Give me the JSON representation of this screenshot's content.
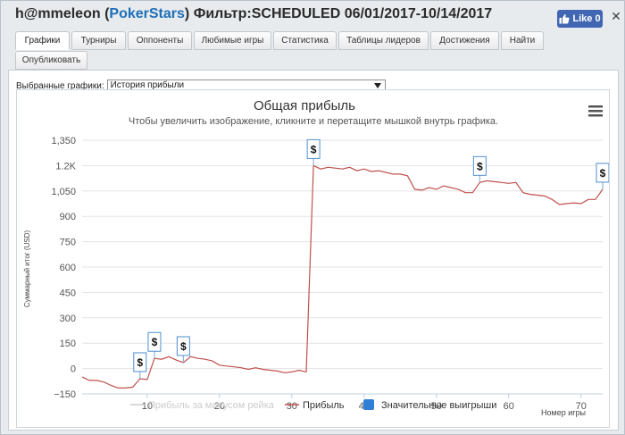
{
  "window": {
    "title_user": "h@mmeleon",
    "title_site": "PokerStars",
    "title_filter": "Фильтр:SCHEDULED 06/01/2017-10/14/2017",
    "title_paren_open": "(",
    "title_paren_close": ")",
    "like_label": "Like 0",
    "close_icon": "close-icon"
  },
  "tabs": [
    {
      "label": "Графики",
      "active": true
    },
    {
      "label": "Турниры"
    },
    {
      "label": "Оппоненты"
    },
    {
      "label": "Любимые игры"
    },
    {
      "label": "Статистика"
    },
    {
      "label": "Таблицы лидеров"
    },
    {
      "label": "Достижения"
    },
    {
      "label": "Найти"
    },
    {
      "label": "Опубликовать"
    }
  ],
  "graph_selector": {
    "label": "Выбранные графики:",
    "value": "История прибыли"
  },
  "chart_data": {
    "type": "line",
    "title": "Общая прибыль",
    "subtitle": "Чтобы увеличить изображение, кликните и перетащите мышкой внутрь графика.",
    "ylabel": "Суммарный итог (USD)",
    "xlabel": "Номер игры",
    "ylim": [
      -150,
      1350
    ],
    "xlim": [
      1,
      73
    ],
    "y_ticks": [
      -150,
      0,
      150,
      300,
      450,
      600,
      750,
      900,
      1050,
      1200,
      1350
    ],
    "y_tick_labels": [
      "−150",
      "0",
      "150",
      "300",
      "450",
      "600",
      "750",
      "900",
      "1,050",
      "1.2K",
      "1,350"
    ],
    "x_ticks": [
      10,
      20,
      30,
      40,
      50,
      60,
      70
    ],
    "x_tick_labels": [
      "10",
      "20",
      "30",
      "40",
      "50",
      "60",
      "70"
    ],
    "grid": "horizontal",
    "legend_position": "bottom",
    "legend": [
      {
        "name": "Прибыль за минусом рейка",
        "color": "#cccccc",
        "marker": "line",
        "hidden": true
      },
      {
        "name": "Прибыль",
        "color": "#c0504d",
        "marker": "line"
      },
      {
        "name": "Значительные выигрыши",
        "color": "#2f7ed8",
        "marker": "square"
      }
    ],
    "series": [
      {
        "name": "Прибыль",
        "color": "#c0504d",
        "x": [
          1,
          2,
          3,
          4,
          5,
          6,
          7,
          8,
          9,
          10,
          11,
          12,
          13,
          14,
          15,
          16,
          17,
          18,
          19,
          20,
          21,
          22,
          23,
          24,
          25,
          26,
          27,
          28,
          29,
          30,
          31,
          32,
          33,
          34,
          35,
          36,
          37,
          38,
          39,
          40,
          41,
          42,
          43,
          44,
          45,
          46,
          47,
          48,
          49,
          50,
          51,
          52,
          53,
          54,
          55,
          56,
          57,
          58,
          59,
          60,
          61,
          62,
          63,
          64,
          65,
          66,
          67,
          68,
          69,
          70,
          71,
          72,
          73
        ],
        "y": [
          -50,
          -70,
          -70,
          -80,
          -100,
          -115,
          -115,
          -110,
          -60,
          -65,
          60,
          55,
          70,
          50,
          35,
          70,
          60,
          55,
          45,
          20,
          15,
          10,
          5,
          -5,
          5,
          -5,
          -10,
          -15,
          -25,
          -20,
          -10,
          -20,
          1200,
          1180,
          1190,
          1185,
          1180,
          1190,
          1170,
          1180,
          1165,
          1170,
          1160,
          1150,
          1150,
          1140,
          1060,
          1055,
          1070,
          1060,
          1080,
          1070,
          1060,
          1040,
          1040,
          1100,
          1110,
          1105,
          1100,
          1095,
          1100,
          1040,
          1030,
          1025,
          1020,
          1000,
          970,
          975,
          980,
          975,
          1000,
          1000,
          1060
        ]
      }
    ],
    "significant_wins": {
      "marker_label": "$",
      "x": [
        9,
        11,
        15,
        33,
        56,
        73
      ]
    },
    "menu_icon": "hamburger-menu-icon"
  }
}
